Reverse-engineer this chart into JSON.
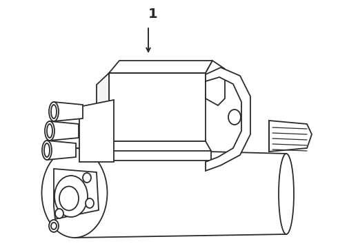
{
  "background_color": "#ffffff",
  "line_color": "#2a2a2a",
  "line_width": 1.3,
  "label": "1",
  "figsize": [
    4.9,
    3.6
  ],
  "dpi": 100
}
